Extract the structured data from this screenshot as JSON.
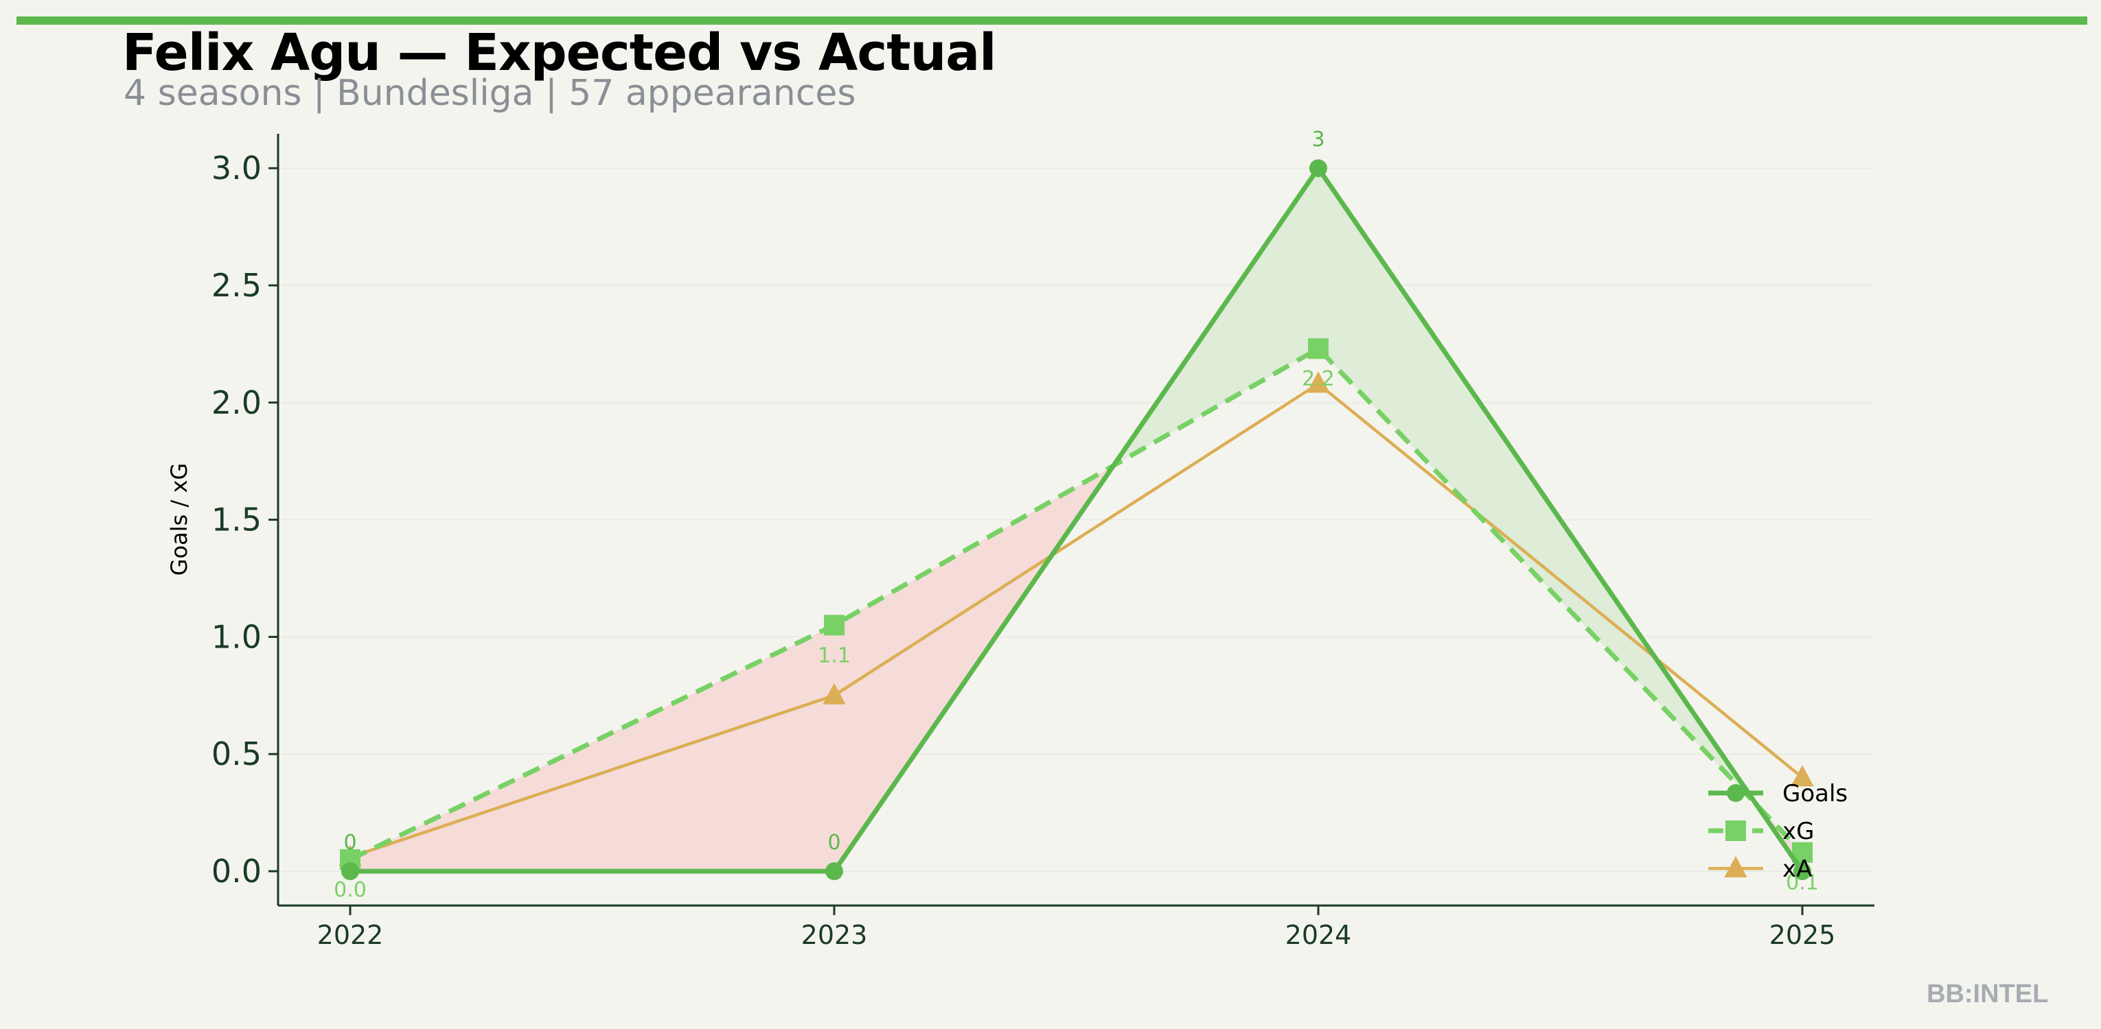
{
  "header": {
    "title": "Felix Agu — Expected vs Actual",
    "subtitle": "4 seasons | Bundesliga | 57 appearances"
  },
  "watermark": "BB:INTEL",
  "colors": {
    "background": "#f4f4ef",
    "accent_bar": "#5cb84d",
    "goals": "#5cb84d",
    "xg": "#78d165",
    "xa": "#dcae55",
    "overperform_fill": "#deecd8",
    "underperform_fill": "#f5dcd8",
    "axis": "#1a3a25",
    "subtitle": "#8a8f95"
  },
  "chart_data": {
    "type": "line",
    "x": [
      "2022",
      "2023",
      "2024",
      "2025"
    ],
    "ylabel": "Goals / xG",
    "xlabel": "",
    "ylim": [
      -0.15,
      3.15
    ],
    "yticks": [
      "0.0",
      "0.5",
      "1.0",
      "1.5",
      "2.0",
      "2.5",
      "3.0"
    ],
    "grid": "horizontal, faint",
    "legend": "lower-right",
    "series": [
      {
        "name": "Goals",
        "values": [
          0,
          0,
          3,
          0
        ],
        "marker": "circle",
        "style": "solid",
        "labels": [
          "0",
          "0",
          "3",
          ""
        ]
      },
      {
        "name": "xG",
        "values": [
          0.05,
          1.05,
          2.23,
          0.08
        ],
        "marker": "square",
        "style": "dashed",
        "labels": [
          "0.0",
          "1.1",
          "2.2",
          "0.1"
        ]
      },
      {
        "name": "xA",
        "values": [
          0.06,
          0.75,
          2.08,
          0.4
        ],
        "marker": "triangle",
        "style": "solid"
      }
    ],
    "shading": "between Goals and xG: green where Goals > xG, red where Goals < xG"
  }
}
